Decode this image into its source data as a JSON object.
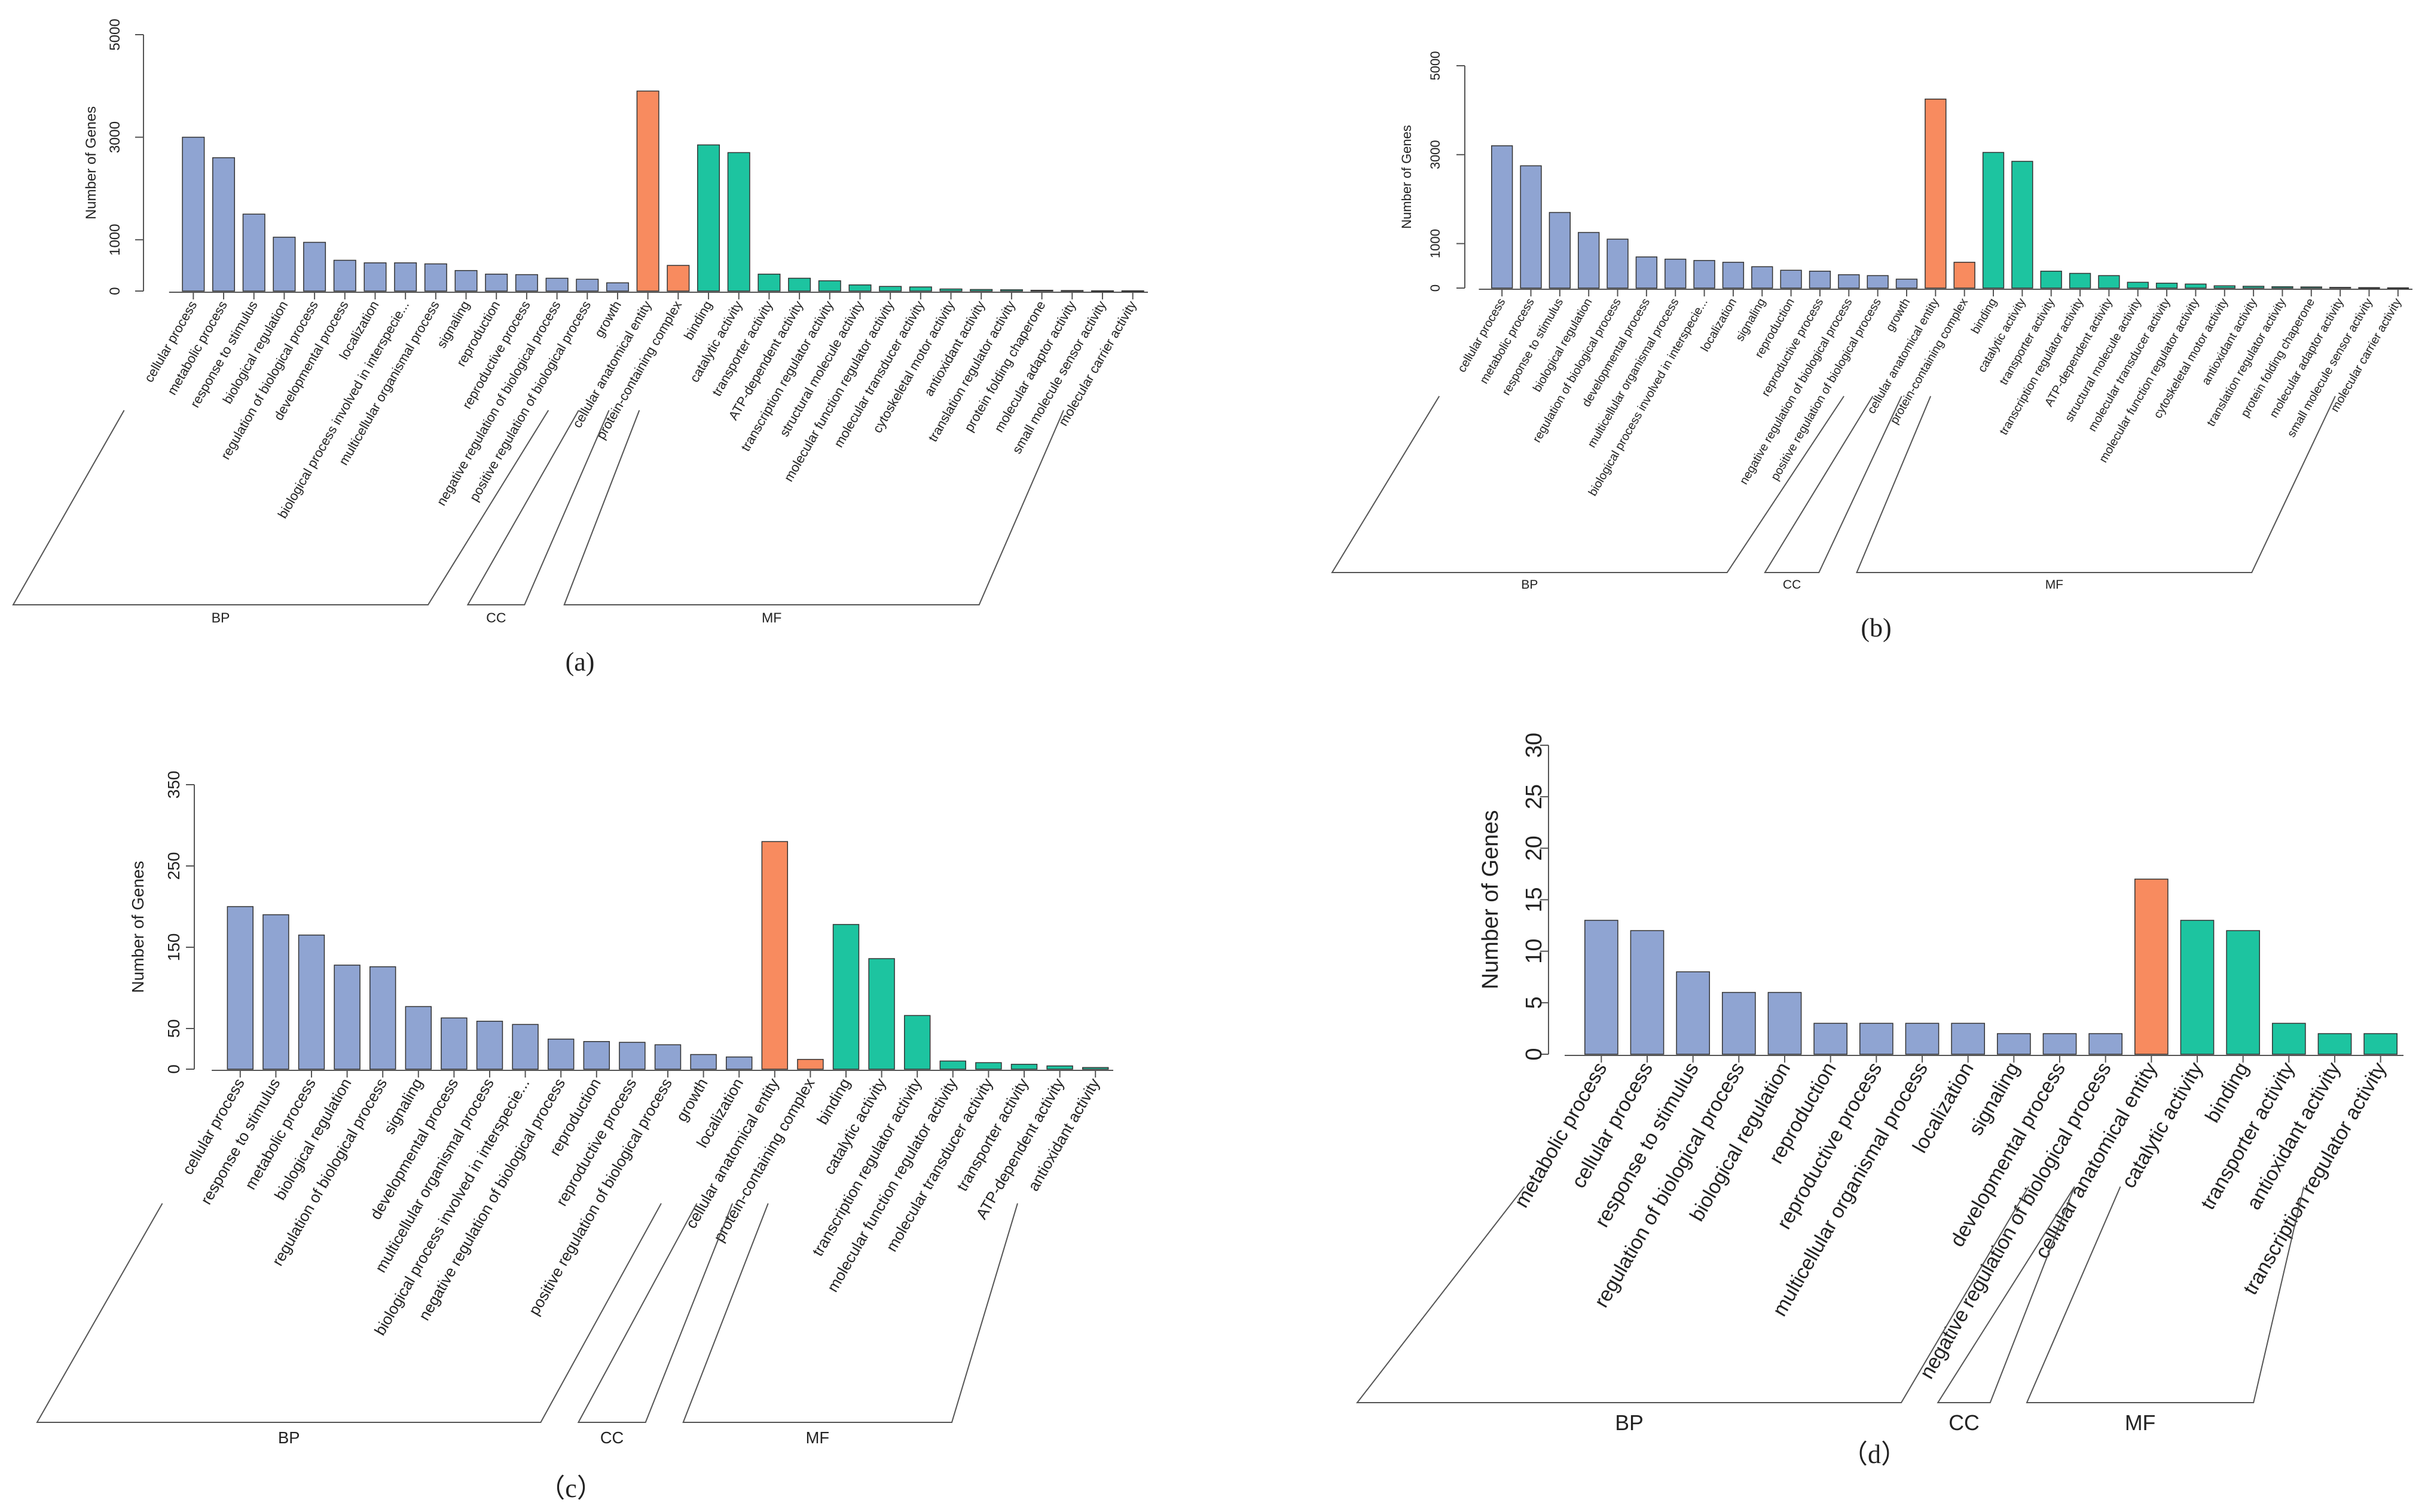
{
  "colors": {
    "BP": "#8fa4d2",
    "CC": "#f88b5f",
    "MF": "#1dc4a0",
    "axis": "#555555",
    "bar_stroke": "#333333"
  },
  "y_axis_label": "Number of Genes",
  "chart_data": [
    {
      "type": "bar",
      "panel": "a",
      "caption": "(a)",
      "ylabel": "Number of Genes",
      "ylim": [
        0,
        5000
      ],
      "yticks": [
        "0",
        "1000",
        "3000",
        "5000"
      ],
      "ytick_values": [
        0,
        1000,
        3000,
        5000
      ],
      "categories": [
        "cellular process",
        "metabolic process",
        "response to stimulus",
        "biological regulation",
        "regulation of biological process",
        "developmental process",
        "localization",
        "biological process involved in interspecie...",
        "multicellular organismal process",
        "signaling",
        "reproduction",
        "reproductive process",
        "negative regulation of biological process",
        "positive regulation of biological process",
        "growth",
        "cellular anatomical entity",
        "protein-containing complex",
        "binding",
        "catalytic activity",
        "transporter activity",
        "ATP-dependent activity",
        "transcription regulator activity",
        "structural molecule activity",
        "molecular function regulator activity",
        "molecular transducer activity",
        "cytoskeletal motor activity",
        "antioxidant activity",
        "translation regulator activity",
        "protein folding chaperone",
        "molecular adaptor activity",
        "small molecule sensor activity",
        "molecular carrier activity"
      ],
      "values": [
        3000,
        2600,
        1500,
        1050,
        950,
        600,
        550,
        550,
        530,
        400,
        330,
        320,
        250,
        230,
        160,
        3900,
        500,
        2850,
        2700,
        330,
        250,
        200,
        120,
        90,
        80,
        40,
        30,
        25,
        15,
        10,
        5,
        5
      ],
      "groups": [
        "BP",
        "BP",
        "BP",
        "BP",
        "BP",
        "BP",
        "BP",
        "BP",
        "BP",
        "BP",
        "BP",
        "BP",
        "BP",
        "BP",
        "BP",
        "CC",
        "CC",
        "MF",
        "MF",
        "MF",
        "MF",
        "MF",
        "MF",
        "MF",
        "MF",
        "MF",
        "MF",
        "MF",
        "MF",
        "MF",
        "MF",
        "MF"
      ],
      "group_labels": {
        "BP": "BP",
        "CC": "CC",
        "MF": "MF"
      }
    },
    {
      "type": "bar",
      "panel": "b",
      "caption": "(b)",
      "ylabel": "Number of Genes",
      "ylim": [
        0,
        5000
      ],
      "yticks": [
        "0",
        "1000",
        "3000",
        "5000"
      ],
      "ytick_values": [
        0,
        1000,
        3000,
        5000
      ],
      "categories": [
        "cellular process",
        "metabolic process",
        "response to stimulus",
        "biological regulation",
        "regulation of biological process",
        "developmental process",
        "multicellular organismal process",
        "biological process involved in interspecie...",
        "localization",
        "signaling",
        "reproduction",
        "reproductive process",
        "negative regulation of biological process",
        "positive regulation of biological process",
        "growth",
        "cellular anatomical entity",
        "protein-containing complex",
        "binding",
        "catalytic activity",
        "transporter activity",
        "transcription regulator activity",
        "ATP-dependent activity",
        "structural molecule activity",
        "molecular transducer activity",
        "molecular function regulator activity",
        "cytoskeletal motor activity",
        "antioxidant activity",
        "translation regulator activity",
        "protein folding chaperone",
        "molecular adaptor activity",
        "small molecule sensor activity",
        "molecular carrier activity"
      ],
      "values": [
        3200,
        2750,
        1700,
        1250,
        1100,
        700,
        650,
        620,
        580,
        480,
        400,
        380,
        300,
        280,
        200,
        4250,
        580,
        3050,
        2850,
        380,
        330,
        280,
        130,
        110,
        90,
        50,
        40,
        30,
        25,
        15,
        10,
        5
      ],
      "groups": [
        "BP",
        "BP",
        "BP",
        "BP",
        "BP",
        "BP",
        "BP",
        "BP",
        "BP",
        "BP",
        "BP",
        "BP",
        "BP",
        "BP",
        "BP",
        "CC",
        "CC",
        "MF",
        "MF",
        "MF",
        "MF",
        "MF",
        "MF",
        "MF",
        "MF",
        "MF",
        "MF",
        "MF",
        "MF",
        "MF",
        "MF",
        "MF"
      ],
      "group_labels": {
        "BP": "BP",
        "CC": "CC",
        "MF": "MF"
      }
    },
    {
      "type": "bar",
      "panel": "c",
      "caption": "（c）",
      "ylabel": "Number of Genes",
      "ylim": [
        0,
        350
      ],
      "yticks": [
        "0",
        "50",
        "150",
        "250",
        "350"
      ],
      "ytick_values": [
        0,
        50,
        150,
        250,
        350
      ],
      "categories": [
        "cellular process",
        "response to stimulus",
        "metabolic process",
        "biological regulation",
        "regulation of biological process",
        "signaling",
        "developmental process",
        "multicellular organismal process",
        "biological process involved in interspecie...",
        "negative regulation of biological process",
        "reproduction",
        "reproductive process",
        "positive regulation of biological process",
        "growth",
        "localization",
        "cellular anatomical entity",
        "protein-containing complex",
        "binding",
        "catalytic activity",
        "transcription regulator activity",
        "molecular function regulator activity",
        "molecular transducer activity",
        "transporter activity",
        "ATP-dependent activity",
        "antioxidant activity"
      ],
      "values": [
        200,
        190,
        165,
        128,
        126,
        77,
        63,
        59,
        55,
        37,
        34,
        33,
        30,
        18,
        15,
        280,
        12,
        178,
        136,
        66,
        10,
        8,
        6,
        4,
        2
      ],
      "groups": [
        "BP",
        "BP",
        "BP",
        "BP",
        "BP",
        "BP",
        "BP",
        "BP",
        "BP",
        "BP",
        "BP",
        "BP",
        "BP",
        "BP",
        "BP",
        "CC",
        "CC",
        "MF",
        "MF",
        "MF",
        "MF",
        "MF",
        "MF",
        "MF",
        "MF"
      ],
      "group_labels": {
        "BP": "BP",
        "CC": "CC",
        "MF": "MF"
      }
    },
    {
      "type": "bar",
      "panel": "d",
      "caption": "（d）",
      "ylabel": "Number of Genes",
      "ylim": [
        0,
        30
      ],
      "yticks": [
        "0",
        "5",
        "10",
        "15",
        "20",
        "25",
        "30"
      ],
      "ytick_values": [
        0,
        5,
        10,
        15,
        20,
        25,
        30
      ],
      "categories": [
        "metabolic process",
        "cellular process",
        "response to stimulus",
        "regulation of biological process",
        "biological regulation",
        "reproduction",
        "reproductive process",
        "multicellular organismal process",
        "localization",
        "signaling",
        "developmental process",
        "negative regulation of biological process",
        "cellular anatomical entity",
        "catalytic activity",
        "binding",
        "transporter activity",
        "antioxidant activity",
        "transcription regulator activity"
      ],
      "values": [
        13,
        12,
        8,
        6,
        6,
        3,
        3,
        3,
        3,
        2,
        2,
        2,
        17,
        13,
        12,
        3,
        2,
        2
      ],
      "groups": [
        "BP",
        "BP",
        "BP",
        "BP",
        "BP",
        "BP",
        "BP",
        "BP",
        "BP",
        "BP",
        "BP",
        "BP",
        "CC",
        "MF",
        "MF",
        "MF",
        "MF",
        "MF"
      ],
      "group_labels": {
        "BP": "BP",
        "CC": "CC",
        "MF": "MF"
      }
    }
  ]
}
